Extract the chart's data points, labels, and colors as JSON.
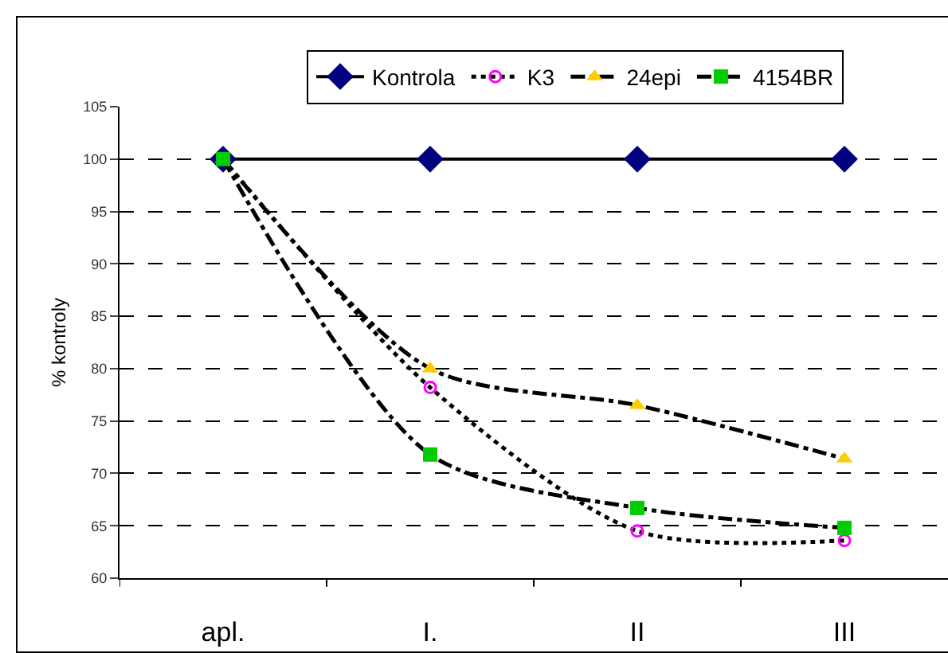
{
  "chart_data": {
    "type": "line",
    "ylabel": "% kontroly",
    "categories": [
      "apl.",
      "I.",
      "II",
      "III"
    ],
    "series": [
      {
        "name": "Kontrola",
        "color": "#000080",
        "values": [
          100,
          100,
          100,
          100
        ],
        "marker": "diamond",
        "line_style": "solid"
      },
      {
        "name": "K3",
        "color": "#ff00ff",
        "values": [
          100,
          78.2,
          64.5,
          63.6
        ],
        "marker": "circle",
        "line_style": "dotted"
      },
      {
        "name": "24epi",
        "color": "#ffcc00",
        "values": [
          100,
          80,
          76.5,
          71.4
        ],
        "marker": "triangle",
        "line_style": "dashed"
      },
      {
        "name": "4154BR",
        "color": "#00cc00",
        "values": [
          100,
          71.8,
          66.7,
          64.8
        ],
        "marker": "square",
        "line_style": "dashed"
      }
    ],
    "ylim": [
      60,
      105
    ],
    "yticks": [
      60,
      65,
      70,
      75,
      80,
      85,
      90,
      95,
      100,
      105
    ],
    "grid": "y",
    "legend": "top"
  }
}
